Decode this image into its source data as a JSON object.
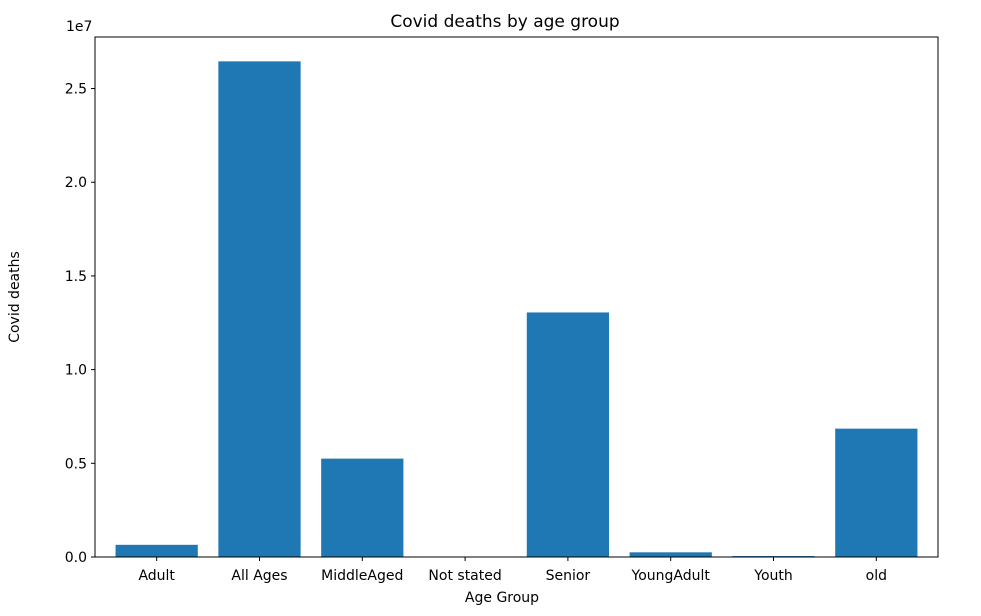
{
  "chart_data": {
    "type": "bar",
    "title": "Covid deaths by age group",
    "xlabel": "Age Group",
    "ylabel": "Covid deaths",
    "y_scale_label": "1e7",
    "categories": [
      "Adult",
      "All Ages",
      "MiddleAged",
      "Not stated",
      "Senior",
      "YoungAdult",
      "Youth",
      "old"
    ],
    "values": [
      650000,
      26450000,
      5250000,
      0,
      13050000,
      250000,
      50000,
      6850000
    ],
    "ylim": [
      0,
      27750000
    ],
    "yticks": [
      0,
      5000000,
      10000000,
      15000000,
      20000000,
      25000000
    ],
    "ytick_labels": [
      "0.0",
      "0.5",
      "1.0",
      "1.5",
      "2.0",
      "2.5"
    ],
    "bar_color": "#1f77b4",
    "grid": false,
    "legend": "none"
  }
}
